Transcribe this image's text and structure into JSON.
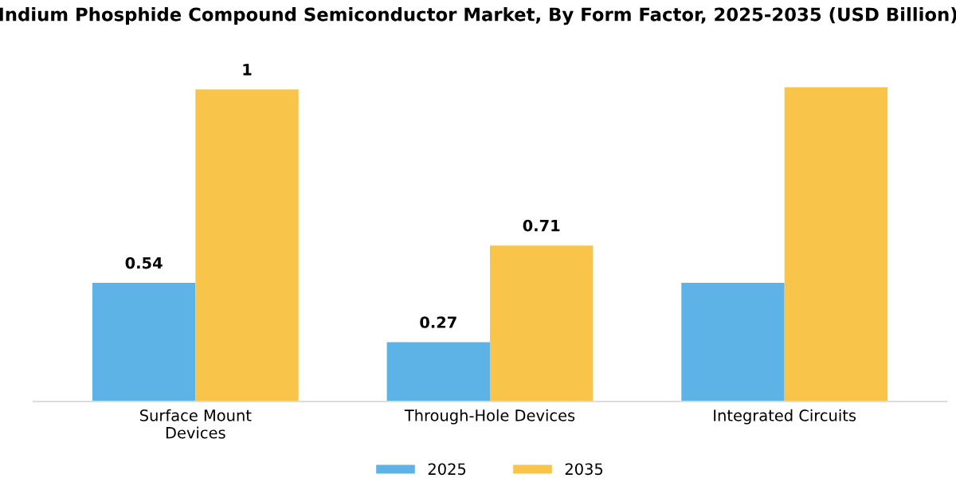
{
  "chart_data": {
    "type": "bar",
    "title": "Indium Phosphide Compound Semiconductor Market, By Form Factor, 2025-2035 (USD Billion)",
    "categories": [
      "Surface Mount\nDevices",
      "Through-Hole Devices",
      "Integrated Circuits"
    ],
    "series": [
      {
        "name": "2025",
        "color": "#5db3e6",
        "values": [
          0.54,
          0.27,
          0.54
        ],
        "value_labels": [
          "0.54",
          "0.27",
          null
        ]
      },
      {
        "name": "2035",
        "color": "#f8c44a",
        "values": [
          1.42,
          0.71,
          1.43
        ],
        "value_labels": [
          "1",
          "0.71",
          null
        ]
      }
    ],
    "legend": "bottom",
    "grid": false
  }
}
